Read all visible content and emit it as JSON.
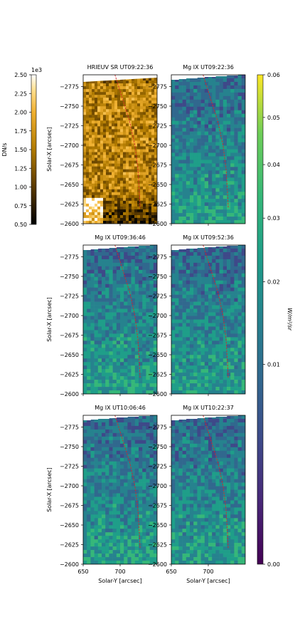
{
  "chart_data": {
    "type": "heatmap",
    "figure": {
      "left_colorbar": {
        "label": "DN/s",
        "exponent": "1e3",
        "ticks": [
          "0.50",
          "0.75",
          "1.00",
          "1.25",
          "1.50",
          "1.75",
          "2.00",
          "2.25",
          "2.50"
        ],
        "range": [
          0.5,
          2.5
        ],
        "colormap": "sdo-aia-171"
      },
      "right_colorbar": {
        "label": "W/m²/sr",
        "ticks": [
          "0.00",
          "0.01",
          "0.02",
          "0.03",
          "0.04",
          "0.05",
          "0.06"
        ],
        "range": [
          0,
          0.06
        ],
        "colormap": "viridis",
        "scale": "sqrt"
      }
    },
    "panels": [
      {
        "title": "HRIEUV SR UT09:22:36",
        "kind": "euv",
        "show_ylabel": true,
        "show_xlabel": false
      },
      {
        "title": "Mg IX UT09:22:36",
        "kind": "mg",
        "show_ylabel": false,
        "show_xlabel": false
      },
      {
        "title": "Mg IX UT09:36:46",
        "kind": "mg",
        "show_ylabel": true,
        "show_xlabel": false
      },
      {
        "title": "Mg IX UT09:52:36",
        "kind": "mg",
        "show_ylabel": false,
        "show_xlabel": false
      },
      {
        "title": "Mg IX UT10:06:46",
        "kind": "mg",
        "show_ylabel": true,
        "show_xlabel": true
      },
      {
        "title": "Mg IX UT10:22:37",
        "kind": "mg",
        "show_ylabel": false,
        "show_xlabel": true
      }
    ],
    "xlabel": "Solar-Y [arcsec]",
    "ylabel": "Solar-X [arcsec]",
    "xlim": [
      650,
      750
    ],
    "ylim": [
      -2600,
      -2790
    ],
    "xticks": [
      650,
      700
    ],
    "xticklabels": [
      "650",
      "700"
    ],
    "yticks": [
      -2775,
      -2750,
      -2725,
      -2700,
      -2675,
      -2650,
      -2625,
      -2600
    ],
    "yticklabels": [
      "−2775",
      "−2750",
      "−2725",
      "−2700",
      "−2675",
      "−2650",
      "−2625",
      "−2600"
    ],
    "overlay": {
      "color": "#d62728",
      "style": "dashed",
      "points": [
        [
          693,
          -2790
        ],
        [
          703,
          -2760
        ],
        [
          713,
          -2730
        ],
        [
          720,
          -2700
        ],
        [
          724,
          -2670
        ],
        [
          726,
          -2640
        ],
        [
          727,
          -2620
        ]
      ]
    }
  }
}
